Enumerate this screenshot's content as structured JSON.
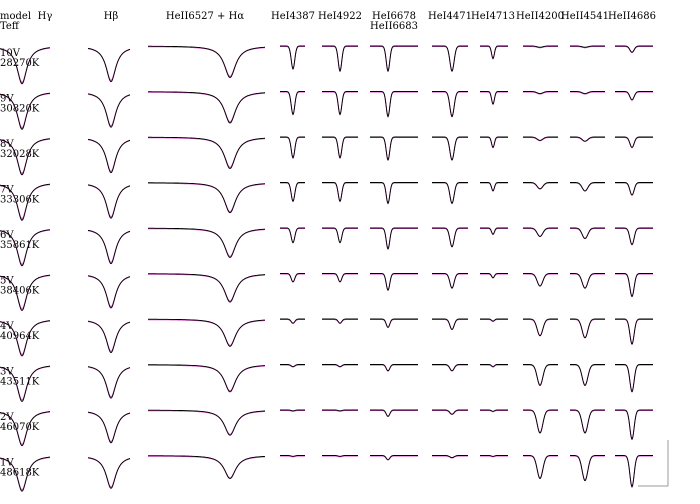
{
  "header": {
    "model": "model",
    "teff": "Teff"
  },
  "columns": [
    [
      "Hγ"
    ],
    [
      "Hβ"
    ],
    [
      "HeII6527 + Hα"
    ],
    [
      "HeI4387"
    ],
    [
      "HeI4922"
    ],
    [
      "HeI6678",
      "HeII6683"
    ],
    [
      "HeI4471"
    ],
    [
      "HeI4713"
    ],
    [
      "HeII4200"
    ],
    [
      "HeII4541"
    ],
    [
      "HeII4686"
    ]
  ],
  "rows": [
    {
      "name": "10V",
      "teff": "28270K",
      "depths": [
        0.9,
        0.85,
        0.75,
        0.55,
        0.6,
        0.6,
        0.6,
        0.3,
        0.03,
        0.03,
        0.15
      ]
    },
    {
      "name": "9V",
      "teff": "30820K",
      "depths": [
        0.9,
        0.85,
        0.75,
        0.55,
        0.55,
        0.6,
        0.6,
        0.3,
        0.05,
        0.05,
        0.2
      ]
    },
    {
      "name": "8V",
      "teff": "32028K",
      "depths": [
        0.9,
        0.85,
        0.75,
        0.5,
        0.5,
        0.55,
        0.55,
        0.25,
        0.08,
        0.1,
        0.25
      ]
    },
    {
      "name": "7V",
      "teff": "33306K",
      "depths": [
        0.9,
        0.85,
        0.72,
        0.45,
        0.45,
        0.5,
        0.5,
        0.2,
        0.15,
        0.2,
        0.3
      ]
    },
    {
      "name": "6V",
      "teff": "35861K",
      "depths": [
        0.9,
        0.85,
        0.7,
        0.35,
        0.35,
        0.5,
        0.45,
        0.15,
        0.2,
        0.25,
        0.4
      ]
    },
    {
      "name": "5V",
      "teff": "38406K",
      "depths": [
        0.88,
        0.82,
        0.68,
        0.2,
        0.2,
        0.4,
        0.35,
        0.1,
        0.3,
        0.35,
        0.55
      ]
    },
    {
      "name": "4V",
      "teff": "40964K",
      "depths": [
        0.88,
        0.8,
        0.65,
        0.1,
        0.1,
        0.2,
        0.25,
        0.05,
        0.4,
        0.45,
        0.6
      ]
    },
    {
      "name": "3V",
      "teff": "43511K",
      "depths": [
        0.88,
        0.8,
        0.65,
        0.05,
        0.05,
        0.15,
        0.15,
        0.05,
        0.5,
        0.5,
        0.65
      ]
    },
    {
      "name": "2V",
      "teff": "46070K",
      "depths": [
        0.85,
        0.78,
        0.6,
        0.02,
        0.02,
        0.15,
        0.1,
        0.03,
        0.55,
        0.55,
        0.7
      ]
    },
    {
      "name": "1V",
      "teff": "48618K",
      "depths": [
        0.85,
        0.78,
        0.55,
        0.02,
        0.02,
        0.1,
        0.05,
        0.02,
        0.55,
        0.6,
        0.75
      ]
    }
  ]
}
